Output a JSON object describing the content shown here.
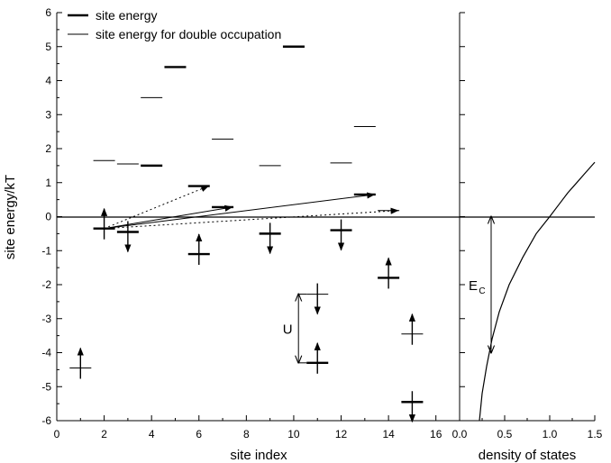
{
  "chart_data": [
    {
      "type": "scatter",
      "panel": "site energies",
      "xlabel": "site index",
      "ylabel": "site energy/kT",
      "xlim": [
        0,
        17
      ],
      "ylim": [
        -6,
        6
      ],
      "xticks": [
        0,
        2,
        4,
        6,
        8,
        10,
        12,
        14,
        16
      ],
      "yticks": [
        -6,
        -5,
        -4,
        -3,
        -2,
        -1,
        0,
        1,
        2,
        3,
        4,
        5,
        6
      ],
      "grid": false,
      "legend_position": "top-left",
      "legend": [
        "site energy",
        "site energy for double occupation"
      ],
      "series": [
        {
          "name": "site energy",
          "style": "thick",
          "points": [
            {
              "x": 2,
              "y": -0.35
            },
            {
              "x": 3,
              "y": -0.45
            },
            {
              "x": 4,
              "y": 1.5
            },
            {
              "x": 5,
              "y": 4.4
            },
            {
              "x": 6,
              "y": -1.1
            },
            {
              "x": 6,
              "y": 0.9
            },
            {
              "x": 7,
              "y": 0.28
            },
            {
              "x": 9,
              "y": -0.5
            },
            {
              "x": 10,
              "y": 5.0
            },
            {
              "x": 11,
              "y": -4.3
            },
            {
              "x": 12,
              "y": -0.4
            },
            {
              "x": 13,
              "y": 0.65
            },
            {
              "x": 14,
              "y": -1.8
            },
            {
              "x": 15,
              "y": -5.45
            }
          ]
        },
        {
          "name": "site energy for double occupation",
          "style": "thin",
          "points": [
            {
              "x": 1,
              "y": -4.45
            },
            {
              "x": 2,
              "y": 1.65
            },
            {
              "x": 3,
              "y": 1.55
            },
            {
              "x": 4,
              "y": 3.5
            },
            {
              "x": 7,
              "y": 2.28
            },
            {
              "x": 9,
              "y": 1.5
            },
            {
              "x": 11,
              "y": -2.28
            },
            {
              "x": 12,
              "y": 1.58
            },
            {
              "x": 13,
              "y": 2.65
            },
            {
              "x": 14,
              "y": 0.18
            },
            {
              "x": 15,
              "y": -3.45
            }
          ]
        }
      ],
      "spins": [
        {
          "x": 1,
          "y": -4.45,
          "dir": "up"
        },
        {
          "x": 2,
          "y": -0.35,
          "dir": "up"
        },
        {
          "x": 3,
          "y": -0.45,
          "dir": "down"
        },
        {
          "x": 6,
          "y": -1.1,
          "dir": "up"
        },
        {
          "x": 9,
          "y": -0.5,
          "dir": "down"
        },
        {
          "x": 11,
          "y": -2.28,
          "dir": "down"
        },
        {
          "x": 11,
          "y": -4.3,
          "dir": "up"
        },
        {
          "x": 12,
          "y": -0.4,
          "dir": "down"
        },
        {
          "x": 14,
          "y": -1.8,
          "dir": "up"
        },
        {
          "x": 15,
          "y": -3.45,
          "dir": "up"
        },
        {
          "x": 15,
          "y": -5.45,
          "dir": "down"
        }
      ],
      "hops": [
        {
          "from": [
            2,
            -0.35
          ],
          "to": [
            6.4,
            0.9
          ],
          "style": "dotted"
        },
        {
          "from": [
            2,
            -0.35
          ],
          "to": [
            7.4,
            0.28
          ],
          "style": "solid"
        },
        {
          "from": [
            2,
            -0.35
          ],
          "to": [
            13.4,
            0.65
          ],
          "style": "solid"
        },
        {
          "from": [
            2,
            -0.35
          ],
          "to": [
            14.4,
            0.18
          ],
          "style": "dotted"
        }
      ],
      "reference_line_y": 0,
      "annotation_U": {
        "label": "U",
        "x": 10.2,
        "y_top": -2.28,
        "y_bottom": -4.3
      }
    },
    {
      "type": "line",
      "panel": "density of states",
      "xlabel": "density of states",
      "ylabel": "",
      "xlim": [
        0,
        1.5
      ],
      "ylim": [
        -6,
        6
      ],
      "xticks": [
        0.0,
        0.5,
        1.0,
        1.5
      ],
      "grid": false,
      "series": [
        {
          "x": [
            0.22,
            0.25,
            0.3,
            0.36,
            0.44,
            0.55,
            0.7,
            0.85,
            1.0,
            1.1,
            1.2,
            1.3,
            1.4,
            1.5
          ],
          "y": [
            -6.0,
            -5.2,
            -4.4,
            -3.6,
            -2.8,
            -2.0,
            -1.2,
            -0.5,
            0.0,
            0.35,
            0.7,
            1.0,
            1.3,
            1.6
          ]
        }
      ],
      "reference_line_y": 0,
      "annotation_Ec": {
        "label": "E",
        "subscript": "C",
        "x": 0.35,
        "y_top": 0,
        "y_bottom": -4.0
      }
    }
  ]
}
